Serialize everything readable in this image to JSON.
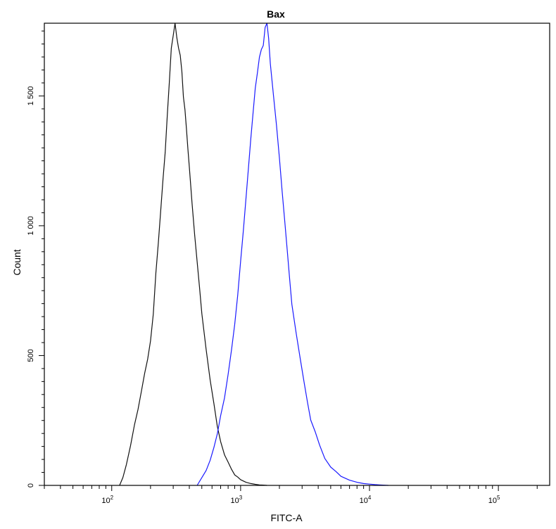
{
  "chart_data": {
    "type": "line",
    "title": "Bax",
    "xlabel": "FITC-A",
    "ylabel": "Count",
    "xscale": "log",
    "xlim": [
      30,
      250000
    ],
    "ylim": [
      0,
      1780
    ],
    "x_ticks": [
      {
        "value": 100,
        "base": "10",
        "exp": "2"
      },
      {
        "value": 1000,
        "base": "10",
        "exp": "3"
      },
      {
        "value": 10000,
        "base": "10",
        "exp": "4"
      },
      {
        "value": 100000,
        "base": "10",
        "exp": "5"
      }
    ],
    "y_ticks": [
      {
        "value": 0,
        "label": "0"
      },
      {
        "value": 500,
        "label": "500"
      },
      {
        "value": 1000,
        "label": "1 000"
      },
      {
        "value": 1500,
        "label": "1 500"
      }
    ],
    "grid": false,
    "series": [
      {
        "color": "#111111",
        "x": [
          115,
          122,
          130,
          140,
          150,
          160,
          170,
          180,
          190,
          200,
          210,
          220,
          230,
          240,
          250,
          260,
          270,
          280,
          290,
          300,
          310,
          320,
          330,
          340,
          350,
          360,
          370,
          380,
          390,
          400,
          420,
          440,
          460,
          480,
          500,
          540,
          580,
          620,
          660,
          700,
          750,
          800,
          850,
          900,
          950,
          1000,
          1100,
          1200,
          1300,
          1400,
          1500,
          1600
        ],
        "y": [
          0,
          30,
          80,
          150,
          230,
          290,
          360,
          430,
          490,
          560,
          660,
          820,
          940,
          1060,
          1180,
          1280,
          1420,
          1550,
          1680,
          1730,
          1780,
          1720,
          1680,
          1660,
          1600,
          1500,
          1450,
          1380,
          1300,
          1230,
          1080,
          960,
          860,
          760,
          660,
          520,
          400,
          310,
          230,
          170,
          120,
          90,
          65,
          45,
          32,
          22,
          12,
          7,
          4,
          2,
          1,
          0
        ]
      },
      {
        "color": "#1a1aff",
        "x": [
          460,
          500,
          540,
          580,
          620,
          660,
          700,
          750,
          800,
          850,
          900,
          950,
          1000,
          1050,
          1100,
          1150,
          1200,
          1250,
          1300,
          1350,
          1400,
          1450,
          1500,
          1550,
          1600,
          1650,
          1700,
          1800,
          1900,
          2000,
          2100,
          2200,
          2300,
          2400,
          2500,
          2700,
          2900,
          3100,
          3300,
          3500,
          3800,
          4100,
          4500,
          5000,
          5500,
          6000,
          7000,
          8000,
          9000,
          10000,
          11000,
          12000,
          14000
        ],
        "y": [
          0,
          30,
          60,
          100,
          150,
          200,
          270,
          340,
          430,
          520,
          620,
          730,
          860,
          980,
          1100,
          1220,
          1340,
          1440,
          1530,
          1590,
          1650,
          1680,
          1700,
          1760,
          1780,
          1720,
          1620,
          1500,
          1380,
          1260,
          1130,
          1020,
          910,
          800,
          700,
          590,
          490,
          400,
          320,
          250,
          200,
          150,
          100,
          70,
          50,
          35,
          20,
          12,
          7,
          5,
          3,
          2,
          0
        ]
      }
    ]
  }
}
